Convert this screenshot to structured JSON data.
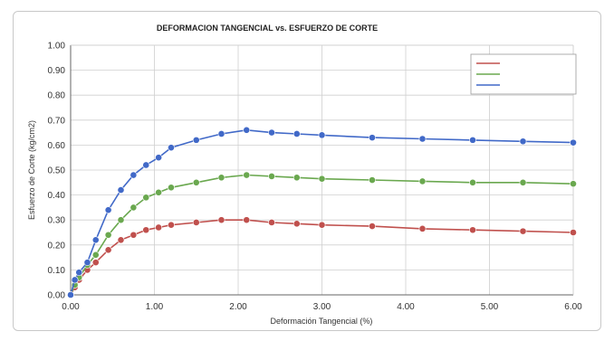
{
  "colors": {
    "grid": "#cfcfcf",
    "axis": "#666666",
    "series_red": "#c0504d",
    "series_green": "#6aa84f",
    "series_blue": "#4169c8"
  },
  "chart_data": {
    "type": "line",
    "title": "DEFORMACION TANGENCIAL vs. ESFUERZO DE CORTE",
    "xlabel": "Deformación Tangencial (%)",
    "ylabel": "Esfuerzo de Corte (kg/cm2)",
    "xlim": [
      0,
      6
    ],
    "ylim": [
      0,
      1
    ],
    "grid": true,
    "legend_position": "top-right",
    "x_ticks": [
      "0.00",
      "1.00",
      "2.00",
      "3.00",
      "4.00",
      "5.00",
      "6.00"
    ],
    "y_ticks": [
      "0.00",
      "0.10",
      "0.20",
      "0.30",
      "0.40",
      "0.50",
      "0.60",
      "0.70",
      "0.80",
      "0.90",
      "1.00"
    ],
    "series": [
      {
        "name": "",
        "color": "#c0504d",
        "x": [
          0.0,
          0.05,
          0.1,
          0.2,
          0.3,
          0.45,
          0.6,
          0.75,
          0.9,
          1.05,
          1.2,
          1.5,
          1.8,
          2.1,
          2.4,
          2.7,
          3.0,
          3.6,
          4.2,
          4.8,
          5.4,
          6.0
        ],
        "y": [
          0.0,
          0.03,
          0.06,
          0.1,
          0.13,
          0.18,
          0.22,
          0.24,
          0.26,
          0.27,
          0.28,
          0.29,
          0.3,
          0.3,
          0.29,
          0.285,
          0.28,
          0.275,
          0.265,
          0.26,
          0.255,
          0.25
        ]
      },
      {
        "name": "",
        "color": "#6aa84f",
        "x": [
          0.0,
          0.05,
          0.1,
          0.2,
          0.3,
          0.45,
          0.6,
          0.75,
          0.9,
          1.05,
          1.2,
          1.5,
          1.8,
          2.1,
          2.4,
          2.7,
          3.0,
          3.6,
          4.2,
          4.8,
          5.4,
          6.0
        ],
        "y": [
          0.0,
          0.04,
          0.07,
          0.12,
          0.16,
          0.24,
          0.3,
          0.35,
          0.39,
          0.41,
          0.43,
          0.45,
          0.47,
          0.48,
          0.475,
          0.47,
          0.465,
          0.46,
          0.455,
          0.45,
          0.45,
          0.445
        ]
      },
      {
        "name": "",
        "color": "#4169c8",
        "x": [
          0.0,
          0.05,
          0.1,
          0.2,
          0.3,
          0.45,
          0.6,
          0.75,
          0.9,
          1.05,
          1.2,
          1.5,
          1.8,
          2.1,
          2.4,
          2.7,
          3.0,
          3.6,
          4.2,
          4.8,
          5.4,
          6.0
        ],
        "y": [
          0.0,
          0.06,
          0.09,
          0.13,
          0.22,
          0.34,
          0.42,
          0.48,
          0.52,
          0.55,
          0.59,
          0.62,
          0.645,
          0.66,
          0.65,
          0.645,
          0.64,
          0.63,
          0.625,
          0.62,
          0.615,
          0.61
        ]
      }
    ]
  }
}
